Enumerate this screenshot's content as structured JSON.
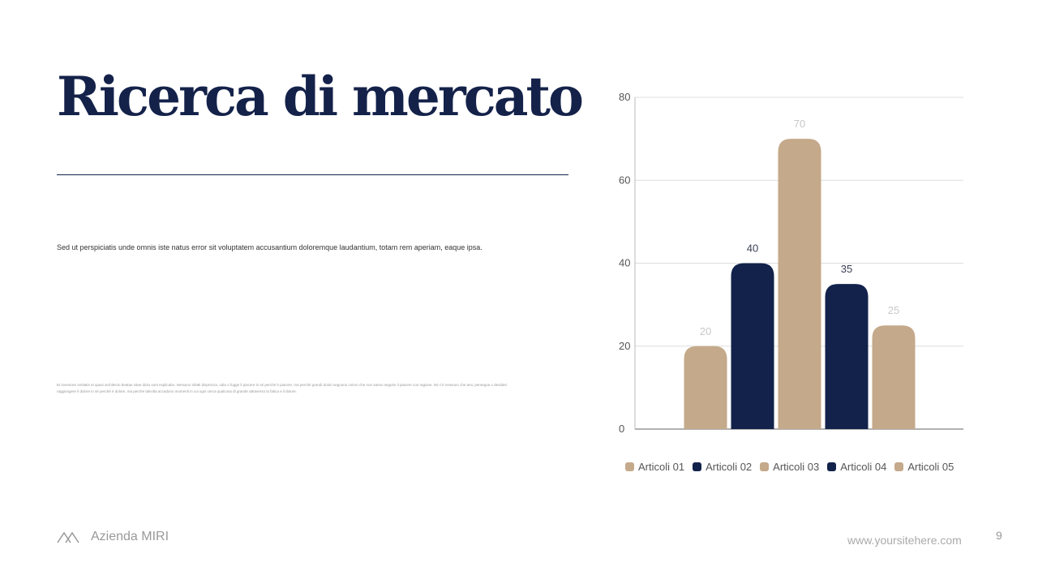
{
  "title": "Ricerca di mercato",
  "lead_text": "Sed ut perspiciatis unde omnis iste natus error sit voluptatem accusantium doloremque laudantium, totam rem aperiam, eaque ipsa.",
  "small_text": "Et inventore veritatis et quasi architecto beatae vitae dicta sunt explicabo. Nessuno infatti disprezza, odia o fugge il piacere in sé perché è piacere, ma perché grandi dolori seguono coloro che non sanno seguire il piacere con ragione. Né c'è nessuno che ami, persegua o desideri raggiungere il dolore in sé perché è dolore, ma perché talvolta accadono momenti in cui ogni cerca qualcosa di grande attraverso la fatica e il dolore.",
  "footer": {
    "brand": "Azienda MIRI",
    "logo_icon": "mountains-icon",
    "website": "www.yoursitehere.com",
    "page_number": "9"
  },
  "colors": {
    "tan": "#c4a98a",
    "navy": "#12224a"
  },
  "chart_data": {
    "type": "bar",
    "categories": [
      "Articoli 01",
      "Articoli 02",
      "Articoli 03",
      "Articoli 04",
      "Articoli 05"
    ],
    "values": [
      20,
      40,
      70,
      35,
      25
    ],
    "bar_colors": [
      "#c4a98a",
      "#12224a",
      "#c4a98a",
      "#12224a",
      "#c4a98a"
    ],
    "ylim": [
      0,
      80
    ],
    "yticks": [
      0,
      20,
      40,
      60,
      80
    ],
    "grid": true,
    "legend": "bottom",
    "data_labels": true
  }
}
